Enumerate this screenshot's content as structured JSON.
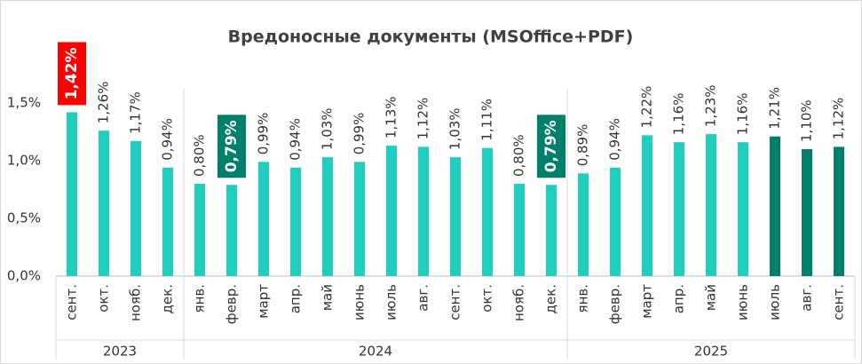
{
  "chart_data": {
    "type": "bar",
    "title": "Вредоносные документы (MSOffice+PDF)",
    "categories": [
      "сент.",
      "окт.",
      "нояб.",
      "дек.",
      "янв.",
      "февр.",
      "март",
      "апр.",
      "май",
      "июнь",
      "июль",
      "авг.",
      "сент.",
      "окт.",
      "нояб.",
      "дек.",
      "янв.",
      "февр.",
      "март",
      "апр.",
      "май",
      "июнь",
      "июль",
      "авг.",
      "сент."
    ],
    "values": [
      1.42,
      1.26,
      1.17,
      0.94,
      0.8,
      0.79,
      0.99,
      0.94,
      1.03,
      0.99,
      1.13,
      1.12,
      1.03,
      1.11,
      0.8,
      0.79,
      0.89,
      0.94,
      1.22,
      1.16,
      1.23,
      1.16,
      1.21,
      1.1,
      1.12
    ],
    "value_labels": [
      "1,42%",
      "1,26%",
      "1,17%",
      "0,94%",
      "0,80%",
      "0,79%",
      "0,99%",
      "0,94%",
      "1,03%",
      "0,99%",
      "1,13%",
      "1,12%",
      "1,03%",
      "1,11%",
      "0,80%",
      "0,79%",
      "0,89%",
      "0,94%",
      "1,22%",
      "1,16%",
      "1,23%",
      "1,16%",
      "1,21%",
      "1,10%",
      "1,12%"
    ],
    "colors": [
      "#1ecfc0",
      "#1ecfc0",
      "#1ecfc0",
      "#1ecfc0",
      "#1ecfc0",
      "#1ecfc0",
      "#1ecfc0",
      "#1ecfc0",
      "#1ecfc0",
      "#1ecfc0",
      "#1ecfc0",
      "#1ecfc0",
      "#1ecfc0",
      "#1ecfc0",
      "#1ecfc0",
      "#1ecfc0",
      "#1ecfc0",
      "#1ecfc0",
      "#1ecfc0",
      "#1ecfc0",
      "#1ecfc0",
      "#1ecfc0",
      "#00806b",
      "#00806b",
      "#00806b"
    ],
    "label_backgrounds": [
      "#ff0000",
      null,
      null,
      null,
      null,
      "#00806b",
      null,
      null,
      null,
      null,
      null,
      null,
      null,
      null,
      null,
      "#00806b",
      null,
      null,
      null,
      null,
      null,
      null,
      null,
      null,
      null
    ],
    "groups": [
      {
        "label": "2023",
        "count": 4
      },
      {
        "label": "2024",
        "count": 12
      },
      {
        "label": "2025",
        "count": 9
      }
    ],
    "ylim": [
      0,
      1.5
    ],
    "yticks": [
      {
        "value": 0,
        "label": "0,0%"
      },
      {
        "value": 0.5,
        "label": "0,5%"
      },
      {
        "value": 1,
        "label": "1,0%"
      },
      {
        "value": 1.5,
        "label": "1,5%"
      }
    ],
    "grid": false
  }
}
